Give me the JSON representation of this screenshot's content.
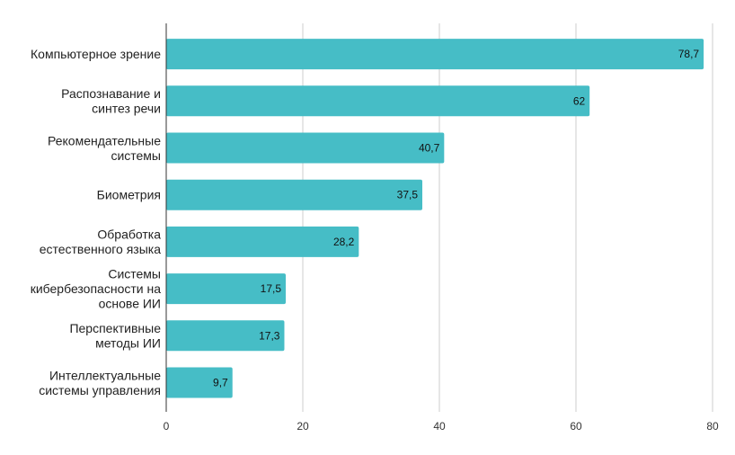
{
  "chart_data": {
    "type": "bar",
    "orientation": "horizontal",
    "categories": [
      [
        "Компьютерное зрение"
      ],
      [
        "Распознавание и",
        "синтез речи"
      ],
      [
        "Рекомендательные",
        "системы"
      ],
      [
        "Биометрия"
      ],
      [
        "Обработка",
        "естественного языка"
      ],
      [
        "Системы",
        "кибербезопасности на",
        "основе ИИ"
      ],
      [
        "Перспективные",
        "методы ИИ"
      ],
      [
        "Интеллектуальные",
        "системы управления"
      ]
    ],
    "values": [
      78.7,
      62,
      40.7,
      37.5,
      28.2,
      17.5,
      17.3,
      9.7
    ],
    "data_labels": [
      "78,7",
      "62",
      "40,7",
      "37,5",
      "28,2",
      "17,5",
      "17,3",
      "9,7"
    ],
    "xlim": [
      0,
      80
    ],
    "xticks": [
      0,
      20,
      40,
      60,
      80
    ],
    "xtick_labels": [
      "0",
      "20",
      "40",
      "60",
      "80"
    ],
    "grid": "vertical",
    "bar_color": "#46bdc6",
    "grid_color": "#cccccc",
    "axis_color": "#333333"
  }
}
